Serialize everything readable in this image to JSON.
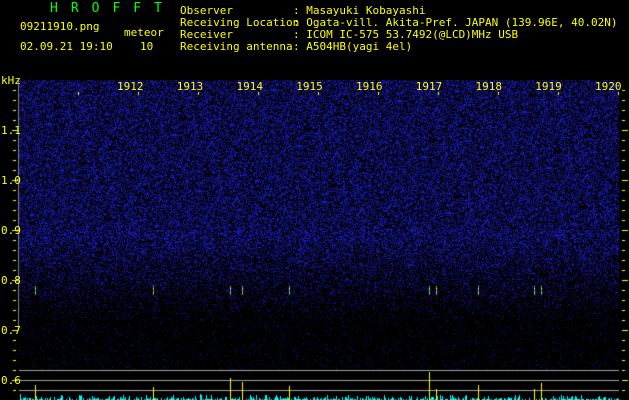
{
  "header": {
    "title": "HROFFT",
    "filename": "09211910.png",
    "datetime": "02.09.21 19:10",
    "mode_label": "meteor",
    "meteor_count": "10",
    "info": [
      {
        "label": "Observer",
        "value": ": Masayuki Kobayashi"
      },
      {
        "label": "Receiving Location",
        "value": ": Ogata-vill. Akita-Pref. JAPAN (139.96E, 40.02N)"
      },
      {
        "label": "Receiver",
        "value": ": ICOM IC-575 53.7492(@LCD)MHz USB"
      },
      {
        "label": "Receiving antenna",
        "value": ": A504HB(yagi 4el)"
      }
    ]
  },
  "chart_data": {
    "type": "heatmap",
    "ylabel": "kHz",
    "ylim": [
      0.56,
      1.2
    ],
    "yticks": [
      "1.1",
      "1.0",
      "0.9",
      "0.8",
      "0.7",
      "0.6"
    ],
    "x_range": [
      "19:10",
      "19:20"
    ],
    "xticks": [
      "1912",
      "1913",
      "1914",
      "1915",
      "1916",
      "1917",
      "1918",
      "1919",
      "1920"
    ],
    "meteor_echo_frequency_khz": 0.78,
    "meteors": [
      {
        "time": "19:10:16",
        "strength": 0.55
      },
      {
        "time": "19:12:14",
        "strength": 0.45
      },
      {
        "time": "19:13:31",
        "strength": 0.8
      },
      {
        "time": "19:13:43",
        "strength": 0.65
      },
      {
        "time": "19:14:30",
        "strength": 0.5
      },
      {
        "time": "19:16:50",
        "strength": 1.0
      },
      {
        "time": "19:16:57",
        "strength": 0.4
      },
      {
        "time": "19:17:39",
        "strength": 0.55
      },
      {
        "time": "19:18:35",
        "strength": 0.4
      },
      {
        "time": "19:18:42",
        "strength": 0.6
      }
    ],
    "colors": {
      "noise": "#2020c0",
      "axis": "#ffff00",
      "count_bars": "#00ffff",
      "meteor_bars": "#ffff00",
      "threshold_lines": "#a0a0a0"
    }
  }
}
